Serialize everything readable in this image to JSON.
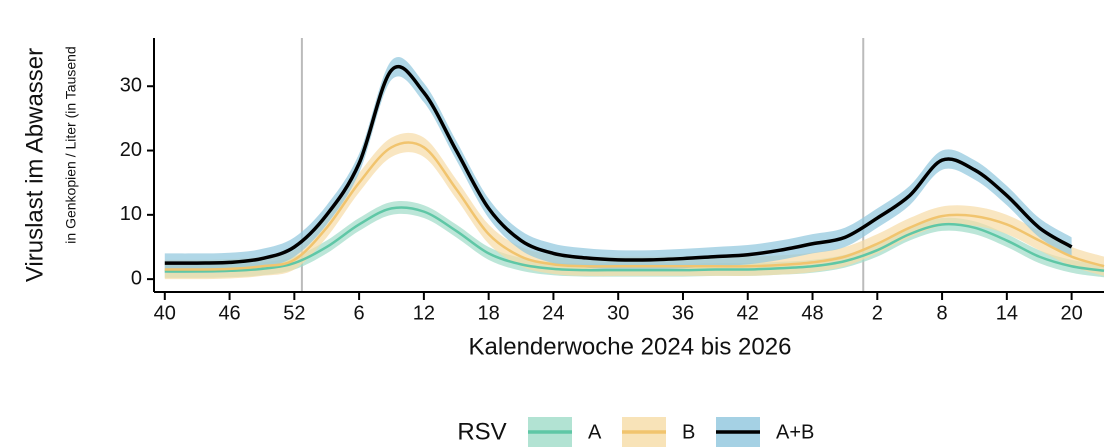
{
  "chart_data": {
    "type": "line",
    "ylabel": "Viruslast im Abwasser",
    "ysublabel": "in Genkopien / Liter (in Tausend",
    "xlabel": "Kalenderwoche 2024 bis 2026",
    "legend_title": "RSV",
    "x": [
      0,
      3,
      6,
      9,
      12,
      15,
      18,
      21,
      24,
      27,
      30,
      33,
      36,
      39,
      42,
      45,
      48,
      51,
      54,
      57,
      60,
      63,
      66,
      69,
      72,
      75,
      78,
      81,
      84,
      87
    ],
    "series": [
      {
        "name": "A",
        "color": "#5fc7a6",
        "ribbon_color": "#9fdcc8",
        "ribbon": 1,
        "values": [
          1.2,
          1.2,
          1.3,
          1.6,
          2.5,
          5,
          8.5,
          11,
          10.5,
          7.5,
          4,
          2.3,
          1.6,
          1.4,
          1.4,
          1.4,
          1.4,
          1.5,
          1.5,
          1.7,
          2,
          2.8,
          4.5,
          7,
          8.5,
          8,
          6,
          3.5,
          2,
          1.3
        ]
      },
      {
        "name": "B",
        "color": "#f1c46e",
        "ribbon_color": "#f6dca6",
        "ribbon": 1.5,
        "values": [
          1.5,
          1.5,
          1.6,
          2,
          3,
          8,
          15,
          20.5,
          20.5,
          14,
          7,
          3.5,
          2.3,
          2,
          2,
          2,
          2,
          2,
          2,
          2.2,
          2.6,
          3.5,
          5.5,
          8,
          9.8,
          9.8,
          8.5,
          6,
          3.5,
          2
        ]
      },
      {
        "name": "A+B",
        "color": "#000000",
        "ribbon_color": "#8fc6dd",
        "ribbon": 1.5,
        "values": [
          2.5,
          2.5,
          2.6,
          3.2,
          5,
          10,
          18,
          32.5,
          29,
          20,
          11,
          6,
          4,
          3.3,
          3,
          3,
          3.2,
          3.5,
          3.8,
          4.5,
          5.5,
          6.5,
          9.5,
          13,
          18.5,
          17,
          13,
          8,
          5,
          null
        ]
      }
    ],
    "xlim": [
      -1,
      87
    ],
    "ylim": [
      -2,
      37.5
    ],
    "yticks": [
      0,
      10,
      20,
      30
    ],
    "xticks": [
      {
        "value": 0,
        "label": "40"
      },
      {
        "value": 6,
        "label": "46"
      },
      {
        "value": 12,
        "label": "52"
      },
      {
        "value": 18,
        "label": "6"
      },
      {
        "value": 24,
        "label": "12"
      },
      {
        "value": 30,
        "label": "18"
      },
      {
        "value": 36,
        "label": "24"
      },
      {
        "value": 42,
        "label": "30"
      },
      {
        "value": 48,
        "label": "36"
      },
      {
        "value": 54,
        "label": "42"
      },
      {
        "value": 60,
        "label": "48"
      },
      {
        "value": 66,
        "label": "2"
      },
      {
        "value": 72,
        "label": "8"
      },
      {
        "value": 78,
        "label": "14"
      },
      {
        "value": 84,
        "label": "20"
      }
    ],
    "vlines": [
      12.7,
      64.7
    ]
  }
}
